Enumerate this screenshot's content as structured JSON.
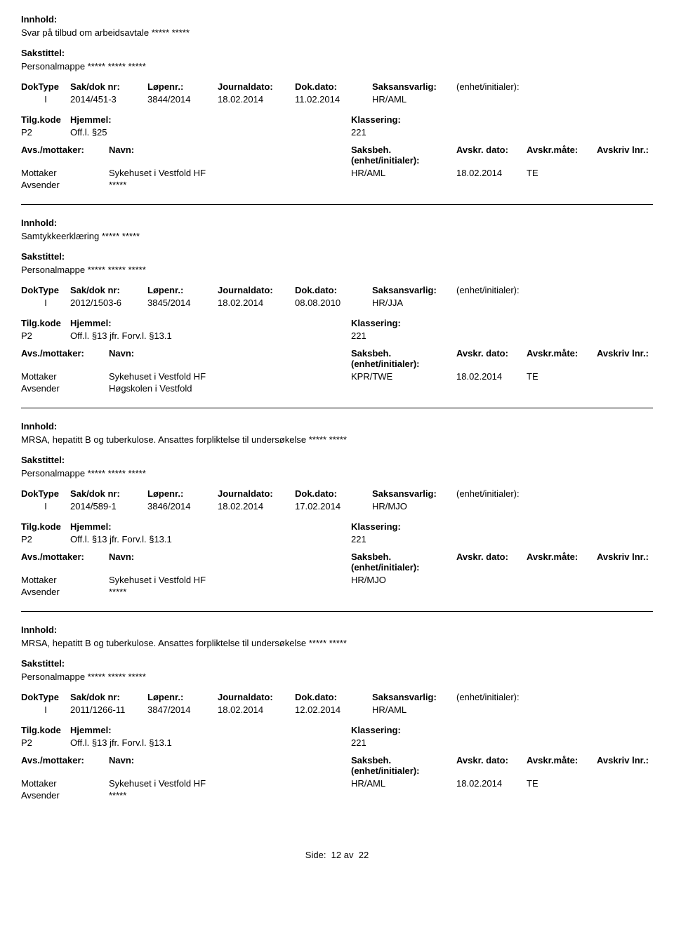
{
  "labels": {
    "innhold": "Innhold:",
    "sakstittel": "Sakstittel:",
    "doktype": "DokType",
    "sakdok": "Sak/dok nr:",
    "lopenr": "Løpenr.:",
    "journaldato": "Journaldato:",
    "dokdato": "Dok.dato:",
    "saksansvarlig": "Saksansvarlig:",
    "enhet": "(enhet/initialer):",
    "tilgkode": "Tilg.kode",
    "hjemmel": "Hjemmel:",
    "klassering": "Klassering:",
    "avsmottaker": "Avs./mottaker:",
    "navn": "Navn:",
    "saksbeh": "Saksbeh.(enhet/initialer):",
    "avskrdato": "Avskr. dato:",
    "avskrmate": "Avskr.måte:",
    "avskrivlnr": "Avskriv lnr.:",
    "mottaker": "Mottaker",
    "avsender": "Avsender",
    "side": "Side:",
    "av": "av"
  },
  "records": [
    {
      "innhold": "Svar på tilbud om arbeidsavtale ***** *****",
      "sakstittel": "Personalmappe ***** ***** *****",
      "doktype": "I",
      "sakdok": "2014/451-3",
      "lopenr": "3844/2014",
      "journaldato": "18.02.2014",
      "dokdato": "11.02.2014",
      "saksansvarlig": "HR/AML",
      "tilgkode": "P2",
      "hjemmel": "Off.l. §25",
      "klassering": "221",
      "mottaker_navn": "Sykehuset i Vestfold HF",
      "mottaker_saksbeh": "HR/AML",
      "mottaker_avskrdato": "18.02.2014",
      "mottaker_avskrmate": "TE",
      "avsender_navn": "*****"
    },
    {
      "innhold": "Samtykkeerklæring ***** *****",
      "sakstittel": "Personalmappe ***** ***** *****",
      "doktype": "I",
      "sakdok": "2012/1503-6",
      "lopenr": "3845/2014",
      "journaldato": "18.02.2014",
      "dokdato": "08.08.2010",
      "saksansvarlig": "HR/JJA",
      "tilgkode": "P2",
      "hjemmel": "Off.l. §13 jfr. Forv.l. §13.1",
      "klassering": "221",
      "mottaker_navn": "Sykehuset i Vestfold HF",
      "mottaker_saksbeh": "KPR/TWE",
      "mottaker_avskrdato": "18.02.2014",
      "mottaker_avskrmate": "TE",
      "avsender_navn": "Høgskolen i Vestfold"
    },
    {
      "innhold": "MRSA, hepatitt B og tuberkulose. Ansattes forpliktelse til undersøkelse ***** *****",
      "sakstittel": "Personalmappe ***** ***** *****",
      "doktype": "I",
      "sakdok": "2014/589-1",
      "lopenr": "3846/2014",
      "journaldato": "18.02.2014",
      "dokdato": "17.02.2014",
      "saksansvarlig": "HR/MJO",
      "tilgkode": "P2",
      "hjemmel": "Off.l. §13 jfr. Forv.l. §13.1",
      "klassering": "221",
      "mottaker_navn": "Sykehuset i Vestfold HF",
      "mottaker_saksbeh": "HR/MJO",
      "mottaker_avskrdato": "",
      "mottaker_avskrmate": "",
      "avsender_navn": "*****"
    },
    {
      "innhold": "MRSA, hepatitt B og tuberkulose. Ansattes forpliktelse til undersøkelse ***** *****",
      "sakstittel": "Personalmappe ***** ***** *****",
      "doktype": "I",
      "sakdok": "2011/1266-11",
      "lopenr": "3847/2014",
      "journaldato": "18.02.2014",
      "dokdato": "12.02.2014",
      "saksansvarlig": "HR/AML",
      "tilgkode": "P2",
      "hjemmel": "Off.l. §13 jfr. Forv.l. §13.1",
      "klassering": "221",
      "mottaker_navn": "Sykehuset i Vestfold HF",
      "mottaker_saksbeh": "HR/AML",
      "mottaker_avskrdato": "18.02.2014",
      "mottaker_avskrmate": "TE",
      "avsender_navn": "*****"
    }
  ],
  "pager": {
    "page": "12",
    "total": "22"
  }
}
